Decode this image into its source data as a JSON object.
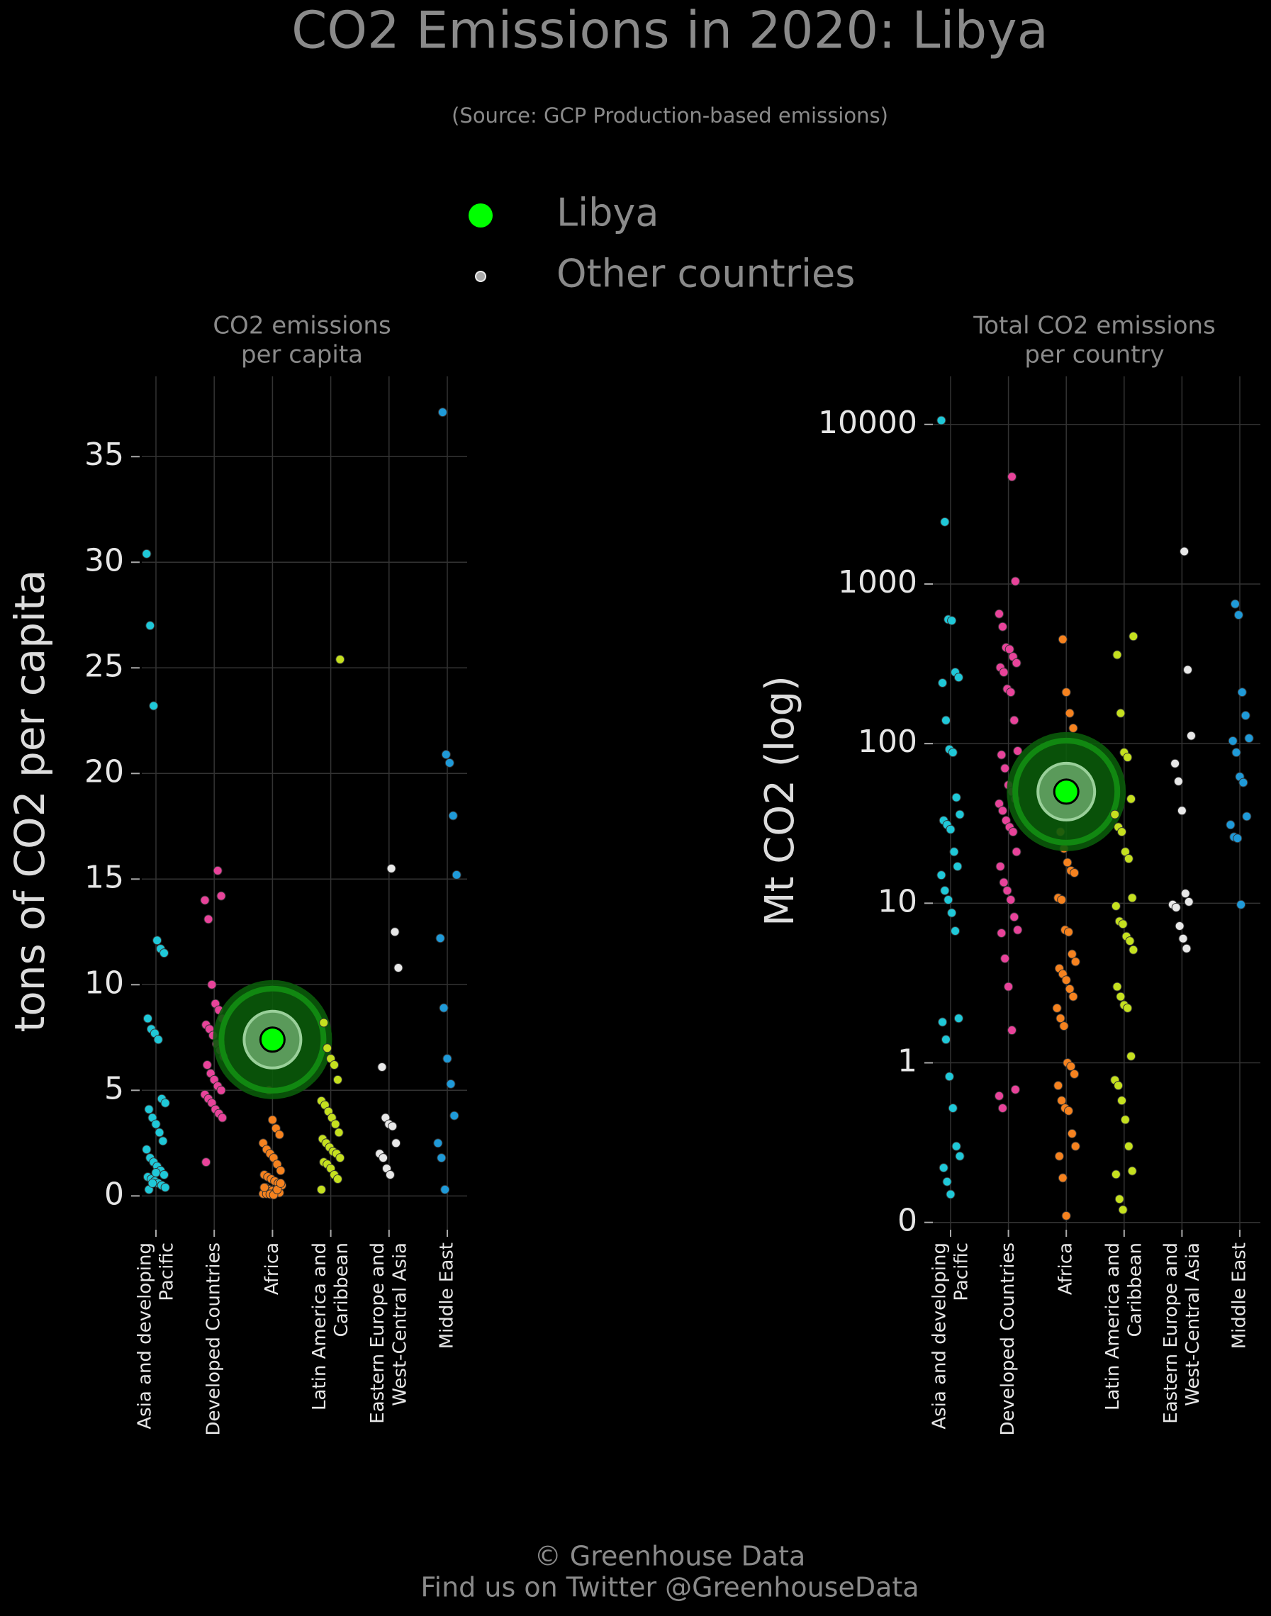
{
  "title": "CO2 Emissions in 2020: Libya",
  "subtitle": "(Source: GCP Production-based emissions)",
  "legend": [
    {
      "name": "Libya",
      "color": "#00ff00"
    },
    {
      "name": "Other countries",
      "color": "#aaaaaa"
    }
  ],
  "footer": [
    "© Greenhouse Data",
    "Find us on Twitter @GreenhouseData"
  ],
  "chart_data": [
    {
      "type": "strip",
      "title": "CO2 emissions\nper capita",
      "ylabel": "tons of CO2 per capita",
      "log": false,
      "grid": true,
      "ylim": [
        -1.6,
        38.8
      ],
      "yticks": [
        0,
        5,
        10,
        15,
        20,
        25,
        30,
        35
      ],
      "categories": [
        "Asia and developing\nPacific",
        "Developed Countries",
        "Africa",
        "Latin America and\nCaribbean",
        "Eastern Europe and\nWest-Central Asia",
        "Middle East"
      ],
      "groups": [
        {
          "color": "#1fc8d8",
          "values": [
            30.4,
            27,
            23.2,
            12.1,
            11.7,
            11.5,
            8.4,
            7.9,
            7.7,
            7.4,
            4.6,
            4.4,
            4.1,
            3.7,
            3.4,
            3.0,
            2.6,
            2.2,
            1.8,
            1.6,
            1.4,
            1.2,
            1.0,
            0.9,
            0.8,
            0.7,
            0.6,
            0.5,
            0.4,
            0.3,
            0.6,
            1.1
          ]
        },
        {
          "color": "#e8439a",
          "values": [
            15.4,
            14.2,
            14.0,
            13.1,
            10.0,
            9.1,
            8.8,
            8.4,
            8.1,
            7.9,
            7.6,
            7.2,
            6.9,
            6.6,
            6.2,
            5.8,
            5.5,
            5.2,
            5.0,
            4.8,
            4.6,
            4.4,
            4.1,
            3.9,
            3.7,
            1.6
          ]
        },
        {
          "color": "#f5821f",
          "values": [
            5.0,
            3.6,
            3.2,
            2.9,
            2.5,
            2.2,
            2.0,
            1.8,
            1.5,
            1.2,
            1.0,
            0.9,
            0.8,
            0.7,
            0.6,
            0.5,
            0.4,
            0.3,
            0.25,
            0.2,
            0.15,
            0.1,
            0.1,
            0.08,
            0.05,
            0.3,
            0.6,
            0.4
          ],
          "highlight": 7.4
        },
        {
          "color": "#c5e01f",
          "values": [
            25.4,
            8.2,
            7.0,
            6.5,
            6.2,
            5.5,
            4.5,
            4.3,
            4.0,
            3.7,
            3.4,
            3.0,
            2.7,
            2.5,
            2.3,
            2.1,
            2.0,
            1.8,
            1.6,
            1.5,
            1.3,
            1.0,
            0.8,
            0.3
          ]
        },
        {
          "color": "#e8e8e8",
          "values": [
            15.5,
            12.5,
            10.8,
            6.1,
            3.7,
            3.4,
            3.3,
            2.5,
            2.0,
            1.8,
            1.3,
            1.0
          ]
        },
        {
          "color": "#1f9ad8",
          "values": [
            37.1,
            20.9,
            20.5,
            18.0,
            15.2,
            12.2,
            8.9,
            6.5,
            5.3,
            3.8,
            2.5,
            1.8,
            0.3
          ]
        }
      ]
    },
    {
      "type": "strip",
      "title": "Total CO2 emissions\nper country",
      "ylabel": "Mt CO2 (log)",
      "log": true,
      "grid": true,
      "ylim": [
        0.09,
        20000
      ],
      "yticks": [
        {
          "value": 0.1,
          "label": "0"
        },
        1,
        10,
        100,
        1000,
        10000
      ],
      "categories": [
        "Asia and developing\nPacific",
        "Developed Countries",
        "Africa",
        "Latin America and\nCaribbean",
        "Eastern Europe and\nWest-Central Asia",
        "Middle East"
      ],
      "groups": [
        {
          "color": "#1fc8d8",
          "values": [
            10600,
            2450,
            600,
            590,
            280,
            260,
            240,
            140,
            92,
            88,
            46,
            36,
            33,
            31,
            29,
            21,
            17,
            15,
            12,
            10.5,
            8.7,
            6.7,
            1.9,
            1.8,
            1.4,
            0.82,
            0.52,
            0.3,
            0.26,
            0.22,
            0.18,
            0.15
          ]
        },
        {
          "color": "#e8439a",
          "values": [
            4700,
            1040,
            650,
            540,
            400,
            390,
            350,
            320,
            300,
            280,
            220,
            210,
            140,
            90,
            85,
            70,
            55,
            50,
            45,
            42,
            38,
            33,
            30,
            28,
            21,
            17,
            13.5,
            12,
            10.5,
            8.2,
            6.8,
            6.5,
            4.5,
            3.0,
            1.6,
            0.68,
            0.62,
            0.52
          ]
        },
        {
          "color": "#f5821f",
          "values": [
            450,
            210,
            155,
            125,
            65,
            28,
            22,
            18,
            16,
            15.5,
            10.8,
            10.5,
            6.8,
            6.6,
            4.8,
            4.3,
            3.9,
            3.6,
            3.3,
            2.9,
            2.6,
            2.2,
            1.9,
            1.7,
            1.0,
            0.95,
            0.85,
            0.72,
            0.58,
            0.52,
            0.5,
            0.36,
            0.3,
            0.26,
            0.19,
            0.11
          ],
          "highlight": 50
        },
        {
          "color": "#c5e01f",
          "values": [
            470,
            360,
            155,
            88,
            82,
            45,
            36,
            30,
            28,
            21,
            19,
            10.8,
            9.6,
            7.7,
            7.4,
            6.2,
            5.8,
            5.1,
            3.0,
            2.6,
            2.3,
            2.2,
            1.1,
            0.78,
            0.72,
            0.58,
            0.44,
            0.3,
            0.21,
            0.2,
            0.14,
            0.12
          ]
        },
        {
          "color": "#e8e8e8",
          "values": [
            1600,
            290,
            112,
            75,
            58,
            38,
            11.5,
            10.2,
            9.8,
            9.4,
            7.2,
            6.0,
            5.2
          ]
        },
        {
          "color": "#1f9ad8",
          "values": [
            750,
            640,
            210,
            150,
            108,
            104,
            88,
            62,
            57,
            35,
            31,
            26,
            25.5,
            9.8
          ]
        }
      ]
    }
  ]
}
